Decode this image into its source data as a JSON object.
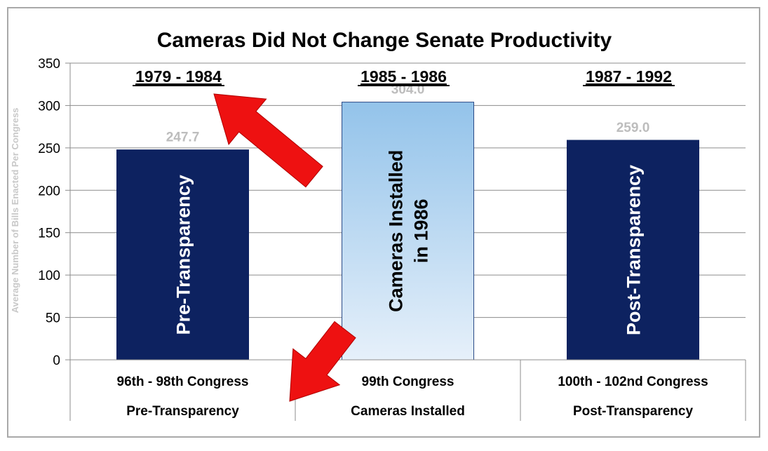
{
  "chart_data": {
    "type": "bar",
    "title": "Cameras Did Not Change Senate Productivity",
    "ylabel": "Average Number of Bills Enacted Per Congress",
    "ylim": [
      0,
      350
    ],
    "yticks": [
      0,
      50,
      100,
      150,
      200,
      250,
      300,
      350
    ],
    "grid": true,
    "categories": [
      "96th - 98th Congress",
      "99th Congress",
      "100th - 102nd Congress"
    ],
    "category_groups": [
      "Pre-Transparency",
      "Cameras Installed",
      "Post-Transparency"
    ],
    "periods": [
      "1979 - 1984",
      "1985 - 1986",
      "1987 - 1992"
    ],
    "values": [
      247.7,
      304.0,
      259.0
    ],
    "value_labels": [
      "247.7",
      "304.0",
      "259.0"
    ],
    "bar_labels": [
      [
        "Pre-Transparency"
      ],
      [
        "Cameras Installed",
        "in 1986"
      ],
      [
        "Post-Transparency"
      ]
    ],
    "colors": {
      "dark_bar": "#0d2260",
      "light_bar_top": "#93c3ea",
      "light_bar_bottom": "#e6f0fa",
      "value_label": "#bdbdbd",
      "axis_label": "#c8c8c8",
      "grid": "#8c8c8c",
      "arrow": "#ee1111",
      "frame": "#a9a9a9"
    },
    "annotations": [
      {
        "type": "arrow",
        "color": "#ee1111",
        "points_to": "1979 - 1984"
      },
      {
        "type": "arrow",
        "color": "#ee1111",
        "points_to": "Pre-Transparency"
      }
    ]
  }
}
